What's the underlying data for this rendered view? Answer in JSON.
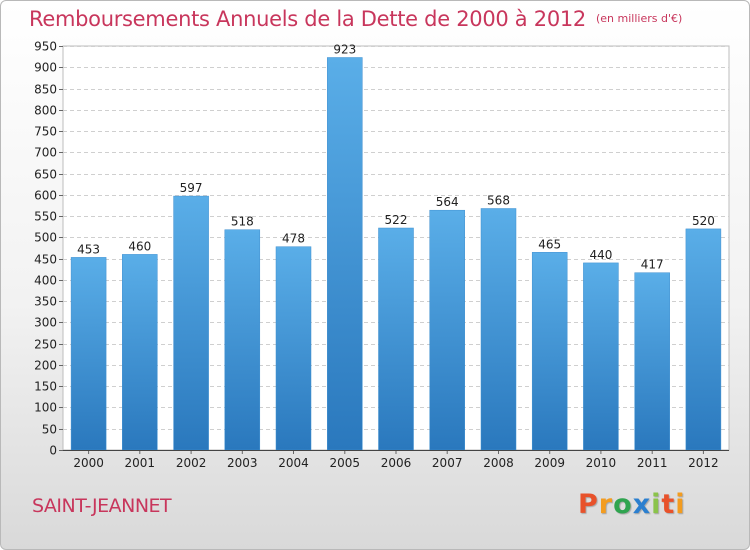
{
  "header": {
    "title": "Remboursements Annuels de la Dette de 2000 à 2012",
    "unit": "(en milliers d'€)"
  },
  "footer": {
    "city": "SAINT-JEANNET",
    "logo_text": "Proxiti"
  },
  "colors": {
    "title": "#c8365c",
    "bar_top": "#5aaee8",
    "bar_bottom": "#2a78bd"
  },
  "chart_data": {
    "type": "bar",
    "title": "Remboursements Annuels de la Dette de 2000 à 2012",
    "xlabel": "",
    "ylabel": "",
    "categories": [
      "2000",
      "2001",
      "2002",
      "2003",
      "2004",
      "2005",
      "2006",
      "2007",
      "2008",
      "2009",
      "2010",
      "2011",
      "2012"
    ],
    "values": [
      453,
      460,
      597,
      518,
      478,
      923,
      522,
      564,
      568,
      465,
      440,
      417,
      520
    ],
    "ylim": [
      0,
      950
    ],
    "ytick_step": 50,
    "grid": true
  }
}
